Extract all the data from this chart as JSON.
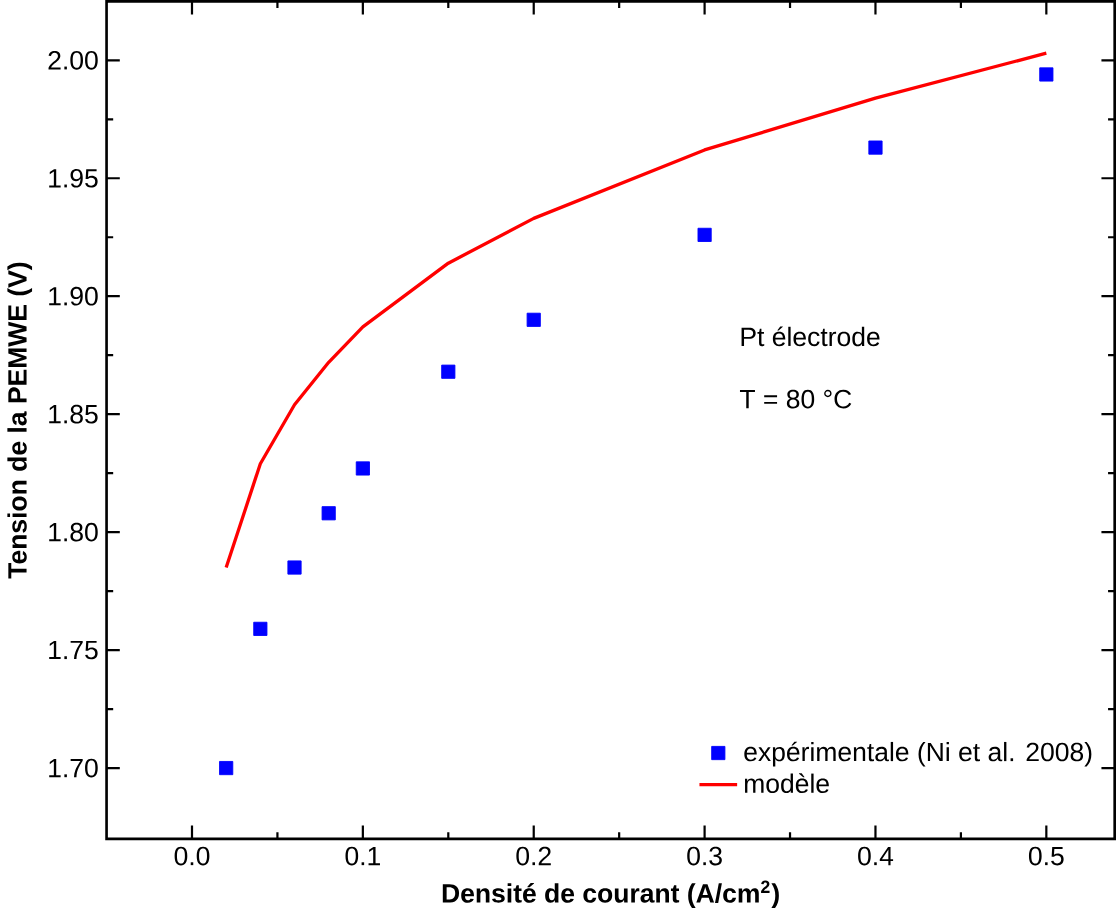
{
  "chart_data": {
    "type": "scatter",
    "xlabel": "Densité de courant (A/cm$^{2}$)",
    "ylabel": "Tension de la PEMWE (V)",
    "annotations": [
      "Pt électrode",
      "T = 80 °C"
    ],
    "series": [
      {
        "name": "expérimentale (Ni et al. 2008)",
        "color": "#0000ff",
        "marker": "square",
        "x": [
          0.02,
          0.04,
          0.06,
          0.08,
          0.1,
          0.15,
          0.2,
          0.3,
          0.4,
          0.5
        ],
        "values": [
          1.7,
          1.759,
          1.785,
          1.808,
          1.827,
          1.868,
          1.89,
          1.926,
          1.963,
          1.994
        ]
      },
      {
        "name": "modèle",
        "type": "line",
        "color": "#ff0000",
        "marker": "none",
        "line_style": "solid",
        "x": [
          0.02,
          0.04,
          0.06,
          0.08,
          0.1,
          0.15,
          0.2,
          0.3,
          0.4,
          0.5
        ],
        "values": [
          1.785,
          1.829,
          1.854,
          1.872,
          1.887,
          1.914,
          1.933,
          1.962,
          1.984,
          2.003
        ]
      }
    ],
    "xlim": [
      -0.05,
      0.54
    ],
    "ylim": [
      1.67,
      2.025
    ],
    "xticks": [
      {
        "value": 0,
        "label": "0.0"
      },
      0.1,
      0.2,
      0.3,
      0.4,
      0.5
    ],
    "yticks": [
      {
        "value": 1.7,
        "label": "1.70"
      },
      1.75,
      {
        "value": 1.8,
        "label": "1.80"
      },
      1.85,
      {
        "value": 1.9,
        "label": "1.90"
      },
      1.95,
      {
        "value": 2.0,
        "label": "2.00"
      }
    ],
    "grid": false,
    "legend": "bottom right"
  }
}
